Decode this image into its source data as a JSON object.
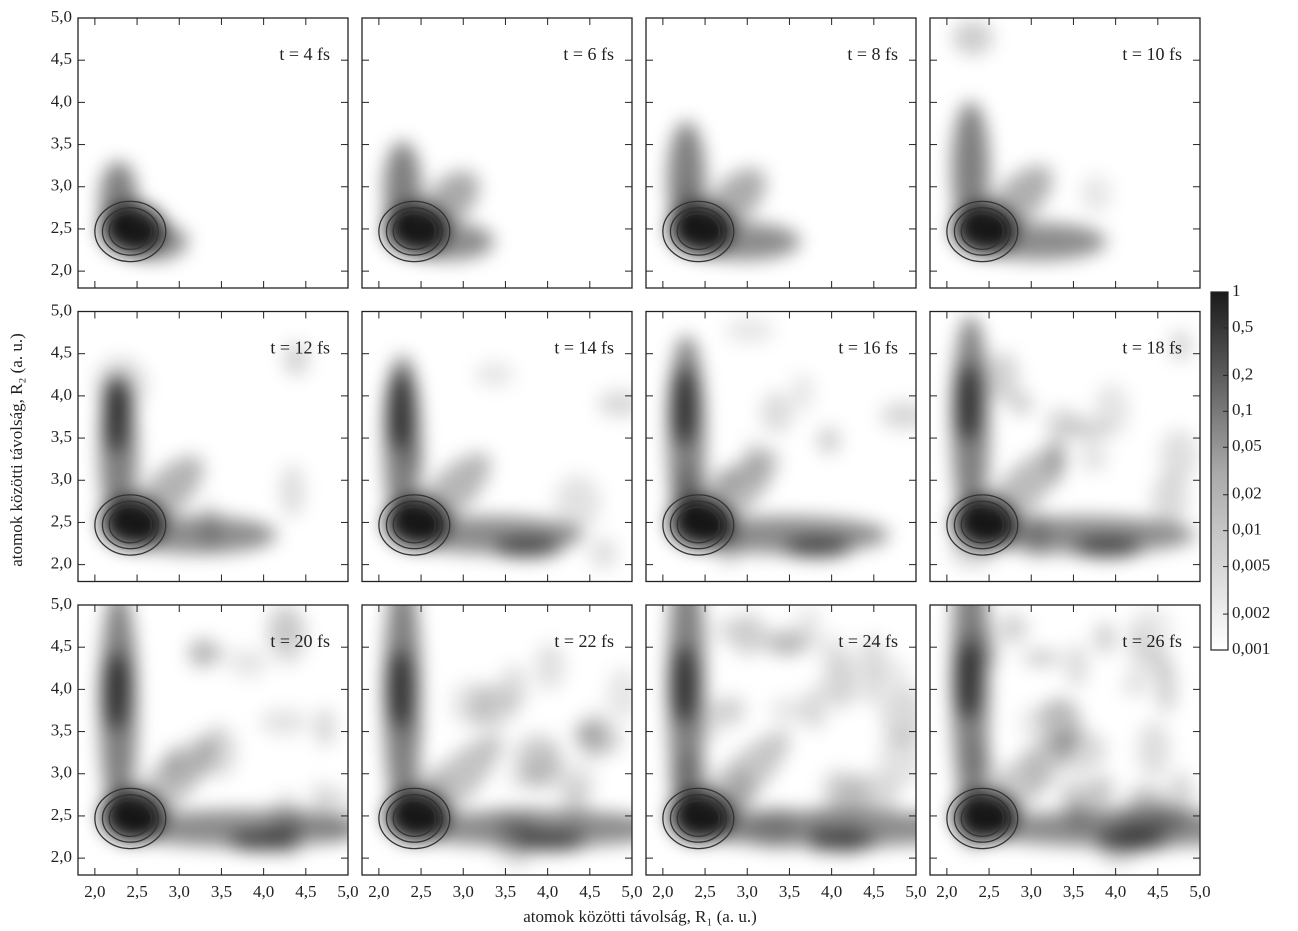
{
  "chart_data": {
    "type": "density-grid",
    "x_label": "atomok közötti távolság, R₁ (a. u.)",
    "y_label": "atomok közötti távolság, R₂ (a. u.)",
    "xlim": [
      1.8,
      5.0
    ],
    "ylim": [
      1.8,
      5.0
    ],
    "xticks": [
      {
        "value": 2.0,
        "label": "2,0"
      },
      {
        "value": 2.5,
        "label": "2,5"
      },
      {
        "value": 3.0,
        "label": "3,0"
      },
      {
        "value": 3.5,
        "label": "3,5"
      },
      {
        "value": 4.0,
        "label": "4,0"
      },
      {
        "value": 4.5,
        "label": "4,5"
      },
      {
        "value": 5.0,
        "label": "5,0"
      }
    ],
    "yticks": [
      {
        "value": 2.0,
        "label": "2,0"
      },
      {
        "value": 2.5,
        "label": "2,5"
      },
      {
        "value": 3.0,
        "label": "3,0"
      },
      {
        "value": 3.5,
        "label": "3,5"
      },
      {
        "value": 4.0,
        "label": "4,0"
      },
      {
        "value": 4.5,
        "label": "4,5"
      },
      {
        "value": 5.0,
        "label": "5,0"
      }
    ],
    "panels": [
      "t = 4 fs",
      "t = 6 fs",
      "t = 8 fs",
      "t = 10 fs",
      "t = 12 fs",
      "t = 14 fs",
      "t = 16 fs",
      "t = 18 fs",
      "t = 20 fs",
      "t = 22 fs",
      "t = 24 fs",
      "t = 26 fs"
    ],
    "colorbar": {
      "log_scale": true,
      "lim": [
        0.001,
        1
      ],
      "ticks": [
        1,
        {
          "value": 0.5,
          "label": "0,5"
        },
        {
          "value": 0.2,
          "label": "0,2"
        },
        {
          "value": 0.1,
          "label": "0,1"
        },
        {
          "value": 0.05,
          "label": "0,05"
        },
        {
          "value": 0.02,
          "label": "0,02"
        },
        {
          "value": 0.01,
          "label": "0,01"
        },
        {
          "value": 0.005,
          "label": "0,005"
        },
        {
          "value": 0.002,
          "label": "0,002"
        },
        {
          "value": 0.001,
          "label": "0,001"
        }
      ]
    }
  }
}
